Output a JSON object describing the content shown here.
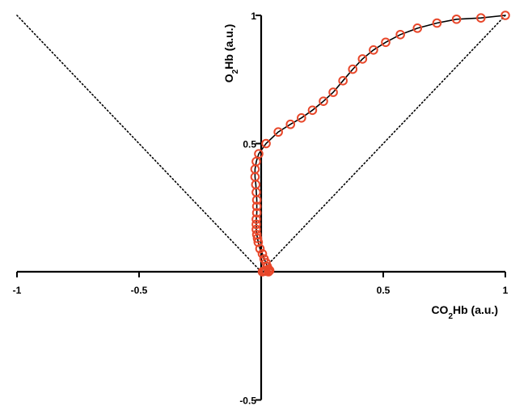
{
  "chart_data": {
    "type": "scatter",
    "title": "",
    "xlabel": "CO₂Hb (a.u.)",
    "ylabel": "O₂Hb (a.u.)",
    "xlim": [
      -1,
      1
    ],
    "ylim": [
      -0.5,
      1
    ],
    "x_ticks": [
      -1,
      -0.5,
      0.5,
      1
    ],
    "y_ticks": [
      -0.5,
      0.5,
      1
    ],
    "x_tick_labels": [
      "-1",
      "-0.5",
      "0.5",
      "1"
    ],
    "y_tick_labels": [
      "-0.5",
      "0.5",
      "1"
    ],
    "grid": false,
    "colors": {
      "marker": "#e8472a",
      "line": "#000000",
      "axes": "#000000",
      "reference": "#000000"
    },
    "reference_lines": [
      {
        "style": "dotted",
        "points": [
          [
            0,
            0
          ],
          [
            -1,
            1
          ]
        ]
      },
      {
        "style": "dotted",
        "points": [
          [
            0,
            0
          ],
          [
            1,
            1
          ]
        ]
      }
    ],
    "series": [
      {
        "style": "markers-with-line",
        "marker": "open-circle",
        "points": [
          [
            1.0,
            1.0
          ],
          [
            0.9,
            0.99
          ],
          [
            0.8,
            0.985
          ],
          [
            0.72,
            0.97
          ],
          [
            0.64,
            0.95
          ],
          [
            0.57,
            0.925
          ],
          [
            0.51,
            0.895
          ],
          [
            0.46,
            0.865
          ],
          [
            0.415,
            0.83
          ],
          [
            0.375,
            0.79
          ],
          [
            0.335,
            0.745
          ],
          [
            0.295,
            0.7
          ],
          [
            0.255,
            0.665
          ],
          [
            0.21,
            0.63
          ],
          [
            0.165,
            0.6
          ],
          [
            0.12,
            0.575
          ],
          [
            0.07,
            0.545
          ],
          [
            0.02,
            0.5
          ],
          [
            -0.01,
            0.46
          ],
          [
            -0.02,
            0.43
          ],
          [
            -0.025,
            0.4
          ],
          [
            -0.025,
            0.37
          ],
          [
            -0.022,
            0.34
          ],
          [
            -0.02,
            0.31
          ],
          [
            -0.018,
            0.28
          ],
          [
            -0.018,
            0.255
          ],
          [
            -0.018,
            0.23
          ],
          [
            -0.02,
            0.205
          ],
          [
            -0.02,
            0.185
          ],
          [
            -0.02,
            0.165
          ],
          [
            -0.018,
            0.145
          ],
          [
            -0.015,
            0.13
          ],
          [
            -0.012,
            0.115
          ],
          [
            -0.005,
            0.09
          ],
          [
            0.005,
            0.07
          ],
          [
            0.012,
            0.05
          ],
          [
            0.02,
            0.035
          ],
          [
            0.025,
            0.02
          ],
          [
            0.03,
            0.01
          ],
          [
            0.035,
            0.005
          ],
          [
            0.03,
            0.0
          ],
          [
            0.02,
            0.002
          ],
          [
            0.015,
            0.005
          ],
          [
            0.01,
            0.002
          ],
          [
            0.005,
            0.0
          ]
        ]
      }
    ]
  }
}
